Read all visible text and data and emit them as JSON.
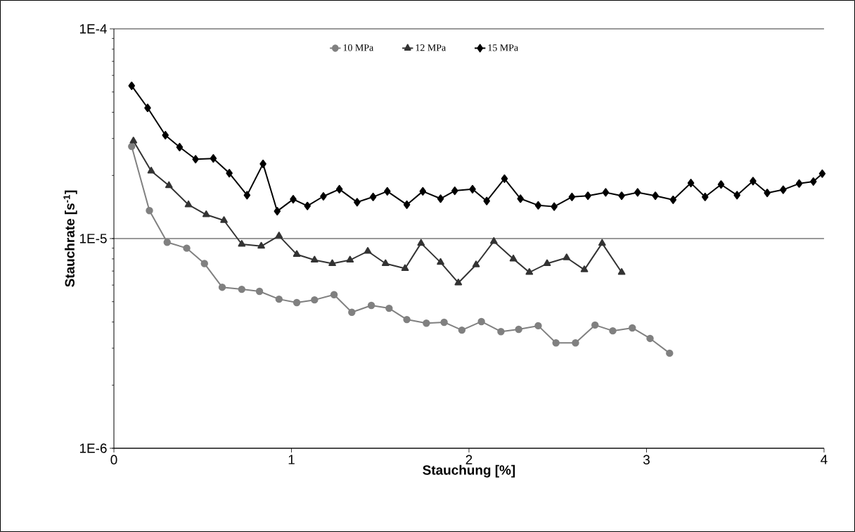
{
  "chart_data": {
    "type": "line",
    "xlabel": "Stauchung [%]",
    "ylabel": "Stauchrate [s$^{-1}$]",
    "log": "y",
    "grid": "y",
    "legend": "top",
    "line_style": "solid",
    "xlim": [
      0,
      4
    ],
    "xticks": [
      0,
      1,
      2,
      3,
      4
    ],
    "ylim": [
      1e-06,
      0.0001
    ],
    "yticks": [
      {
        "value": 1e-06,
        "label": "1E-6"
      },
      {
        "value": 1e-05,
        "label": "1E-5"
      },
      {
        "value": 0.0001,
        "label": "1E-4"
      }
    ],
    "series": [
      {
        "name": "10 MPa",
        "color": "#808080",
        "marker": "circle",
        "x": [
          0.1,
          0.2,
          0.3,
          0.41,
          0.51,
          0.61,
          0.72,
          0.82,
          0.93,
          1.03,
          1.13,
          1.24,
          1.34,
          1.45,
          1.55,
          1.65,
          1.76,
          1.86,
          1.96,
          2.07,
          2.18,
          2.28,
          2.39,
          2.49,
          2.6,
          2.71,
          2.81,
          2.92,
          3.02,
          3.13
        ],
        "values": [
          2.75e-05,
          1.36e-05,
          9.6e-06,
          9e-06,
          7.6e-06,
          5.86e-06,
          5.73e-06,
          5.6e-06,
          5.14e-06,
          4.95e-06,
          5.1e-06,
          5.4e-06,
          4.45e-06,
          4.8e-06,
          4.65e-06,
          4.11e-06,
          3.95e-06,
          3.99e-06,
          3.66e-06,
          4.02e-06,
          3.6e-06,
          3.69e-06,
          3.84e-06,
          3.18e-06,
          3.18e-06,
          3.87e-06,
          3.63e-06,
          3.75e-06,
          3.34e-06,
          2.84e-06
        ]
      },
      {
        "name": "12 MPa",
        "color": "#333333",
        "marker": "triangle",
        "x": [
          0.11,
          0.21,
          0.31,
          0.42,
          0.52,
          0.62,
          0.72,
          0.83,
          0.93,
          1.03,
          1.13,
          1.23,
          1.33,
          1.43,
          1.53,
          1.64,
          1.73,
          1.84,
          1.94,
          2.04,
          2.14,
          2.25,
          2.34,
          2.44,
          2.55,
          2.65,
          2.75,
          2.86
        ],
        "values": [
          2.92e-05,
          2.1e-05,
          1.79e-05,
          1.45e-05,
          1.3e-05,
          1.22e-05,
          9.4e-06,
          9.2e-06,
          1.03e-05,
          8.4e-06,
          7.9e-06,
          7.6e-06,
          7.9e-06,
          8.7e-06,
          7.6e-06,
          7.2e-06,
          9.5e-06,
          7.7e-06,
          6.15e-06,
          7.5e-06,
          9.7e-06,
          8e-06,
          6.9e-06,
          7.6e-06,
          8.1e-06,
          7.1e-06,
          9.5e-06,
          6.9e-06
        ]
      },
      {
        "name": "15 MPa",
        "color": "#000000",
        "marker": "diamond",
        "x": [
          0.1,
          0.19,
          0.29,
          0.37,
          0.46,
          0.56,
          0.65,
          0.75,
          0.84,
          0.92,
          1.01,
          1.09,
          1.18,
          1.27,
          1.37,
          1.46,
          1.54,
          1.65,
          1.74,
          1.84,
          1.92,
          2.02,
          2.1,
          2.2,
          2.29,
          2.39,
          2.48,
          2.58,
          2.67,
          2.77,
          2.86,
          2.95,
          3.05,
          3.15,
          3.25,
          3.33,
          3.42,
          3.51,
          3.6,
          3.68,
          3.77,
          3.86,
          3.94,
          3.99
        ],
        "values": [
          5.35e-05,
          4.2e-05,
          3.11e-05,
          2.73e-05,
          2.39e-05,
          2.41e-05,
          2.05e-05,
          1.61e-05,
          2.27e-05,
          1.35e-05,
          1.54e-05,
          1.43e-05,
          1.59e-05,
          1.72e-05,
          1.49e-05,
          1.58e-05,
          1.68e-05,
          1.45e-05,
          1.68e-05,
          1.55e-05,
          1.69e-05,
          1.72e-05,
          1.51e-05,
          1.93e-05,
          1.55e-05,
          1.44e-05,
          1.42e-05,
          1.58e-05,
          1.6e-05,
          1.66e-05,
          1.6e-05,
          1.66e-05,
          1.6e-05,
          1.53e-05,
          1.84e-05,
          1.58e-05,
          1.81e-05,
          1.61e-05,
          1.88e-05,
          1.65e-05,
          1.71e-05,
          1.83e-05,
          1.87e-05,
          2.04e-05
        ]
      }
    ]
  }
}
